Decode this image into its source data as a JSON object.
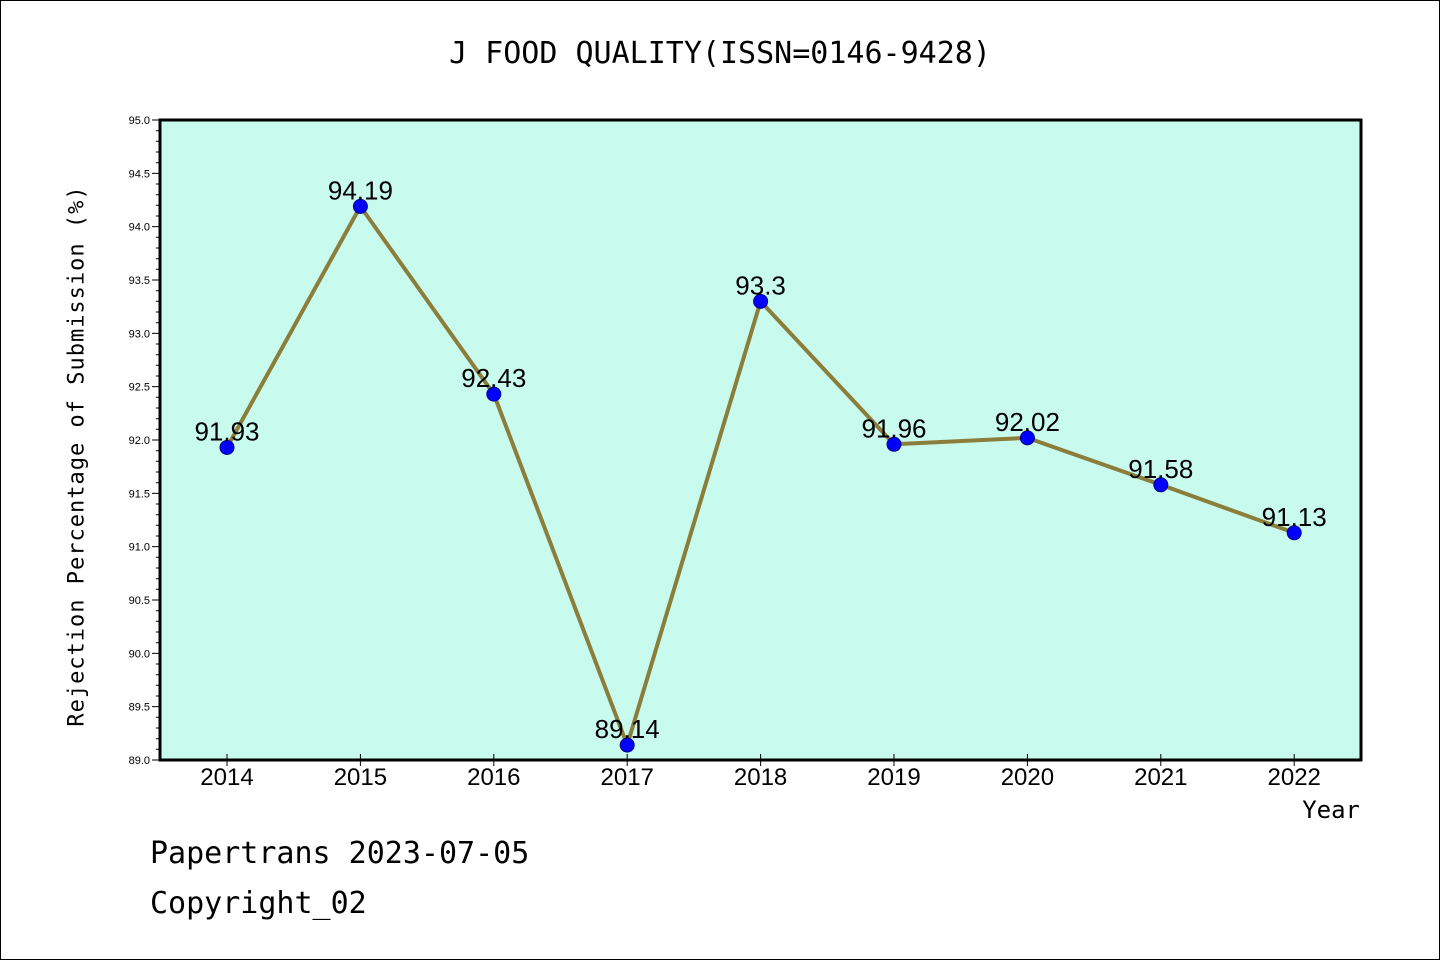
{
  "chart_data": {
    "type": "line",
    "title": "J FOOD QUALITY(ISSN=0146-9428)",
    "xlabel": "Year",
    "ylabel": "Rejection Percentage of Submission (%)",
    "categories": [
      "2014",
      "2015",
      "2016",
      "2017",
      "2018",
      "2019",
      "2020",
      "2021",
      "2022"
    ],
    "series": [
      {
        "values": [
          91.93,
          94.19,
          92.43,
          89.14,
          93.3,
          91.96,
          92.02,
          91.58,
          91.13
        ],
        "labels": [
          "91.93",
          "94.19",
          "92.43",
          "89.14",
          "93.3",
          "91.96",
          "92.02",
          "91.58",
          "91.13"
        ]
      }
    ],
    "ylim": [
      89.0,
      95.0
    ],
    "yticks": [
      "89.0",
      "89.5",
      "90.0",
      "90.5",
      "91.0",
      "91.5",
      "92.0",
      "92.5",
      "93.0",
      "93.5",
      "94.0",
      "94.5",
      "95.0"
    ],
    "grid": false,
    "colors": {
      "plot_bg": "#c8fbee",
      "line": "#8b7d3a",
      "marker": "#0000ff"
    }
  },
  "footer": {
    "line1": "Papertrans 2023-07-05",
    "line2": "Copyright_02"
  }
}
